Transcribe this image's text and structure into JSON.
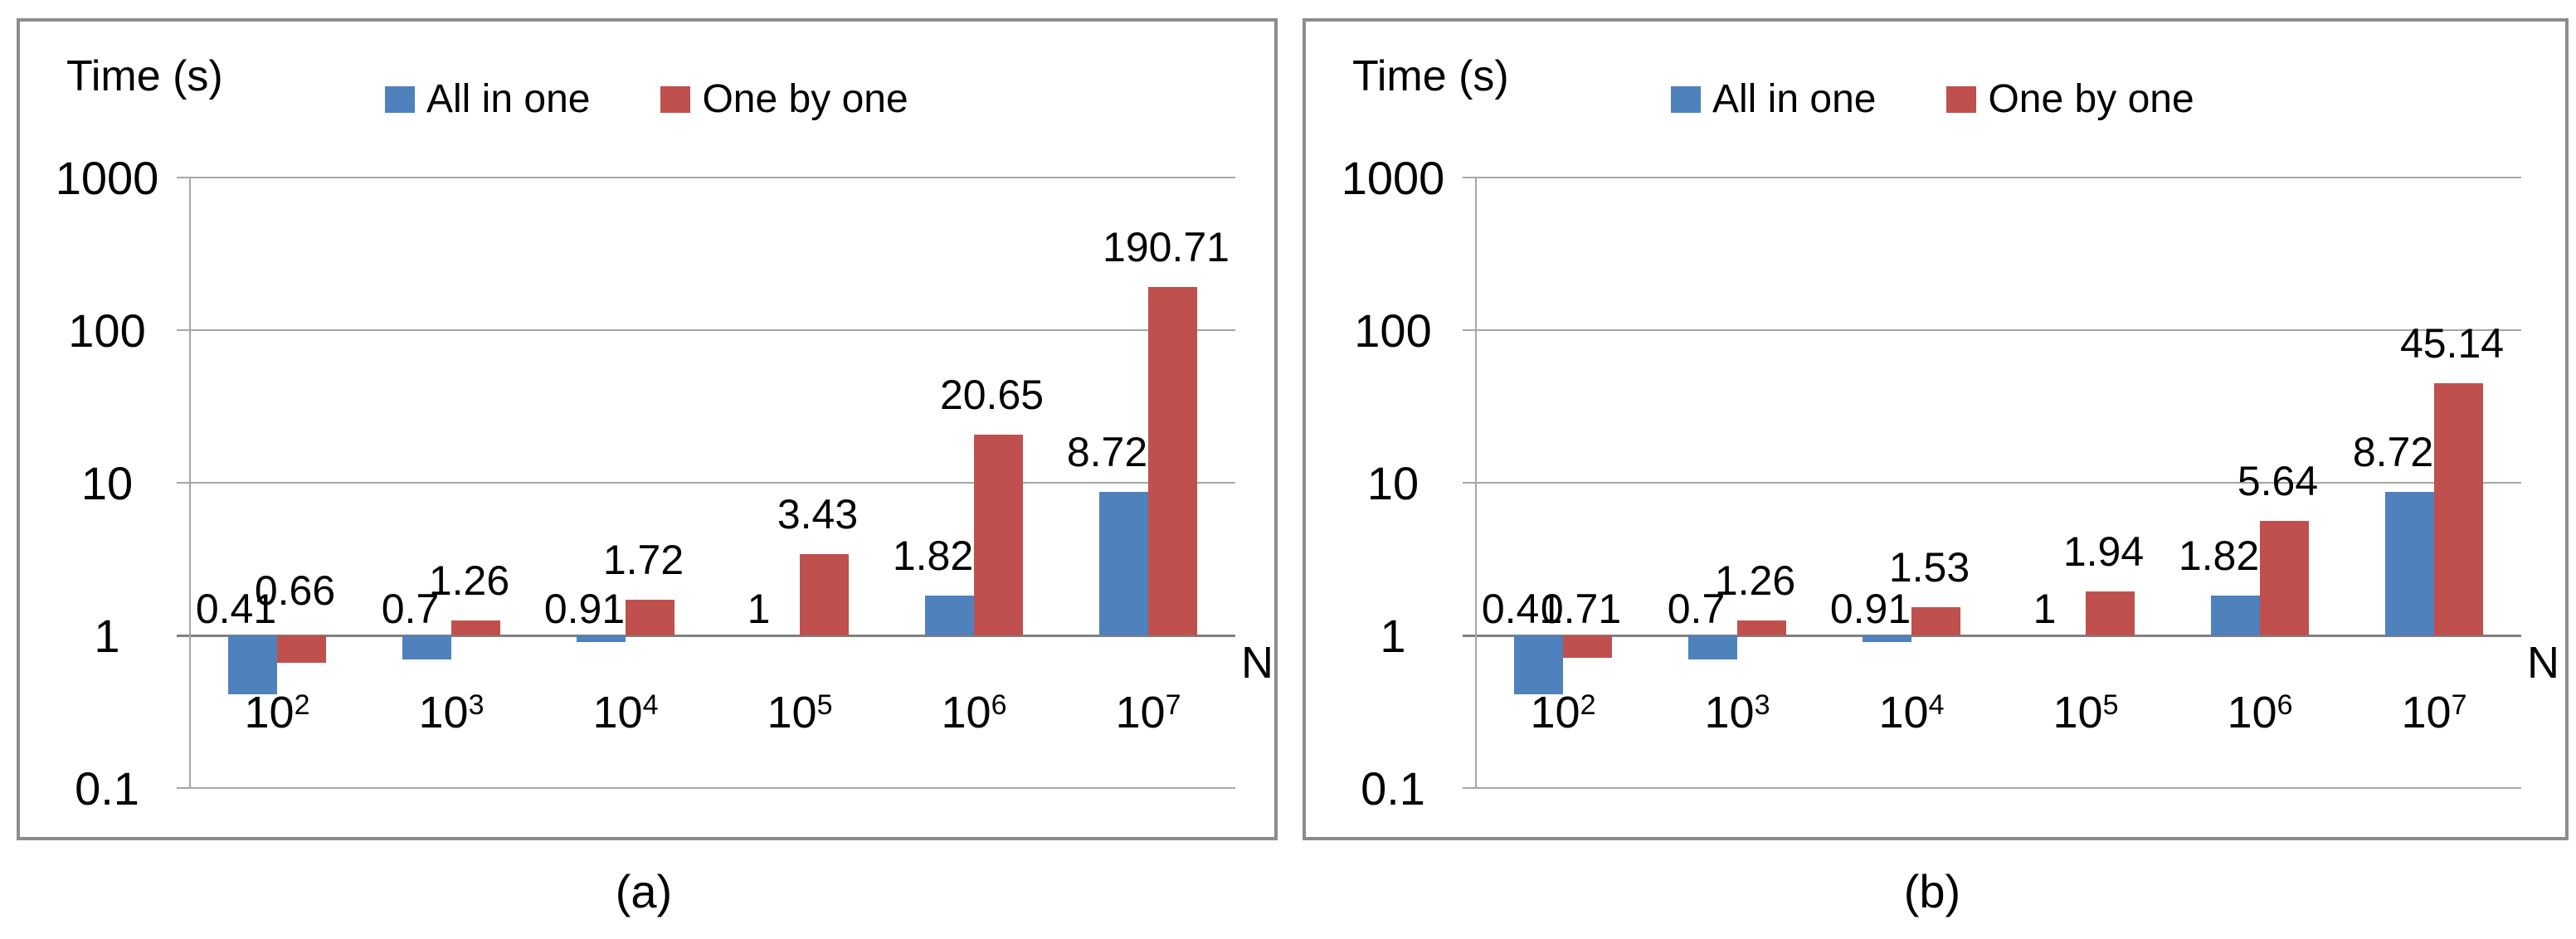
{
  "captions": {
    "a": "(a)",
    "b": "(b)"
  },
  "colors": {
    "series_blue": "#4F81BD",
    "series_red": "#C0504D",
    "gridline": "#A6A6A6",
    "axis_line": "#808080",
    "panel_border": "#8C8C8C",
    "text": "#000000"
  },
  "chart_data": [
    {
      "type": "bar",
      "title": "Time (s)",
      "xlabel": "N",
      "y_scale": "log",
      "ylim": [
        0.1,
        1000
      ],
      "yticks": [
        "1000",
        "100",
        "10",
        "1",
        "0.1"
      ],
      "ytick_values": [
        1000,
        100,
        10,
        1,
        0.1
      ],
      "grid": "horizontal",
      "legend_position": "top",
      "baseline": 1,
      "categories_base": "10",
      "categories_exp": [
        "2",
        "3",
        "4",
        "5",
        "6",
        "7"
      ],
      "categories": [
        "10^2",
        "10^3",
        "10^4",
        "10^5",
        "10^6",
        "10^7"
      ],
      "series": [
        {
          "name": "All in one",
          "color": "#4F81BD",
          "values": [
            0.41,
            0.7,
            0.91,
            1,
            1.82,
            8.72
          ],
          "labels": [
            "0.41",
            "0.7",
            "0.91",
            "1",
            "1.82",
            "8.72"
          ]
        },
        {
          "name": "One by one",
          "color": "#C0504D",
          "values": [
            0.66,
            1.26,
            1.72,
            3.43,
            20.65,
            190.71
          ],
          "labels": [
            "0.66",
            "1.26",
            "1.72",
            "3.43",
            "20.65",
            "190.71"
          ]
        }
      ]
    },
    {
      "type": "bar",
      "title": "Time (s)",
      "xlabel": "N",
      "y_scale": "log",
      "ylim": [
        0.1,
        1000
      ],
      "yticks": [
        "1000",
        "100",
        "10",
        "1",
        "0.1"
      ],
      "ytick_values": [
        1000,
        100,
        10,
        1,
        0.1
      ],
      "grid": "horizontal",
      "legend_position": "top",
      "baseline": 1,
      "categories_base": "10",
      "categories_exp": [
        "2",
        "3",
        "4",
        "5",
        "6",
        "7"
      ],
      "categories": [
        "10^2",
        "10^3",
        "10^4",
        "10^5",
        "10^6",
        "10^7"
      ],
      "series": [
        {
          "name": "All in one",
          "color": "#4F81BD",
          "values": [
            0.41,
            0.7,
            0.91,
            1,
            1.82,
            8.72
          ],
          "labels": [
            "0.41",
            "0.7",
            "0.91",
            "1",
            "1.82",
            "8.72"
          ]
        },
        {
          "name": "One by one",
          "color": "#C0504D",
          "values": [
            0.71,
            1.26,
            1.53,
            1.94,
            5.64,
            45.14
          ],
          "labels": [
            "0.71",
            "1.26",
            "1.53",
            "1.94",
            "5.64",
            "45.14"
          ]
        }
      ]
    }
  ]
}
